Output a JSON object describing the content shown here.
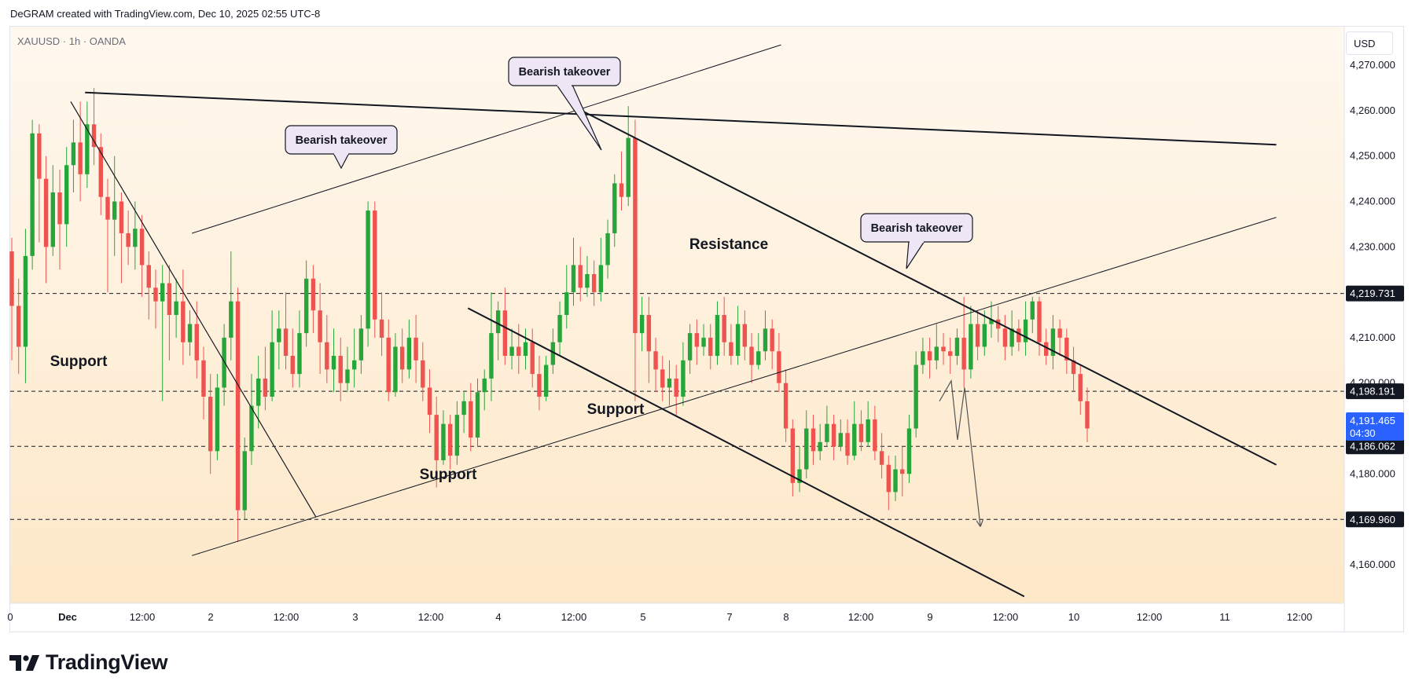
{
  "header": {
    "caption": "DeGRAM created with TradingView.com, Dec 10, 2025 02:55 UTC-8",
    "symbol": "XAUUSD · 1h · OANDA",
    "currency_button": "USD"
  },
  "footer": {
    "logo_text": "TradingView"
  },
  "colors": {
    "up": "#26a63a",
    "down": "#ef5350",
    "line": "#131722",
    "bg_top": "#fff8ef",
    "bg_bottom": "#fde8c8",
    "callout_bg": "#efe6f5",
    "last_price_bg": "#2962ff"
  },
  "chart_data": {
    "type": "candlestick",
    "symbol": "XAUUSD",
    "interval": "1h",
    "ylim": [
      4151.5,
      4278.5
    ],
    "y_ticks": [
      "4,160.000",
      "4,170.000",
      "4,180.000",
      "4,190.000",
      "4,200.000",
      "4,210.000",
      "4,220.000",
      "4,230.000",
      "4,240.000",
      "4,250.000",
      "4,260.000",
      "4,270.000"
    ],
    "x_ticks": [
      "0",
      "Dec",
      "12:00",
      "2",
      "12:00",
      "3",
      "12:00",
      "4",
      "12:00",
      "5",
      "7",
      "8",
      "12:00",
      "9",
      "12:00",
      "10",
      "12:00",
      "11",
      "12:00"
    ],
    "price_labels": [
      {
        "text": "4,219.731",
        "value": 4219.731
      },
      {
        "text": "4,198.191",
        "value": 4198.191
      },
      {
        "text": "4,186.062",
        "value": 4186.062
      },
      {
        "text": "4,169.960",
        "value": 4169.96
      }
    ],
    "last_price": {
      "value_text": "4,191.465",
      "countdown": "04:30",
      "value": 4191.465
    },
    "annotations": [
      {
        "text": "Bearish takeover",
        "type": "callout"
      },
      {
        "text": "Bearish takeover",
        "type": "callout"
      },
      {
        "text": "Bearish takeover",
        "type": "callout"
      },
      {
        "text": "Resistance",
        "type": "label"
      },
      {
        "text": "Support",
        "type": "label"
      },
      {
        "text": "Support",
        "type": "label"
      },
      {
        "text": "Support",
        "type": "label"
      }
    ],
    "candles": [
      [
        4229,
        4217,
        4232,
        4205
      ],
      [
        4217,
        4208,
        4223,
        4202
      ],
      [
        4208,
        4228,
        4234,
        4200
      ],
      [
        4228,
        4255,
        4258,
        4225
      ],
      [
        4255,
        4245,
        4257,
        4231
      ],
      [
        4245,
        4230,
        4250,
        4222
      ],
      [
        4230,
        4242,
        4248,
        4228
      ],
      [
        4242,
        4235,
        4247,
        4225
      ],
      [
        4235,
        4248,
        4252,
        4230
      ],
      [
        4248,
        4253,
        4258,
        4242
      ],
      [
        4253,
        4246,
        4262,
        4240
      ],
      [
        4246,
        4257,
        4262,
        4243
      ],
      [
        4257,
        4252,
        4265,
        4248
      ],
      [
        4252,
        4241,
        4255,
        4237
      ],
      [
        4241,
        4236,
        4245,
        4220
      ],
      [
        4236,
        4240,
        4250,
        4228
      ],
      [
        4240,
        4233,
        4242,
        4222
      ],
      [
        4233,
        4230,
        4238,
        4226
      ],
      [
        4230,
        4234,
        4240,
        4225
      ],
      [
        4234,
        4226,
        4237,
        4219
      ],
      [
        4226,
        4221,
        4229,
        4214
      ],
      [
        4221,
        4218,
        4225,
        4212
      ],
      [
        4218,
        4222,
        4226,
        4196
      ],
      [
        4222,
        4215,
        4226,
        4205
      ],
      [
        4215,
        4218,
        4223,
        4210
      ],
      [
        4218,
        4209,
        4225,
        4204
      ],
      [
        4209,
        4213,
        4216,
        4206
      ],
      [
        4213,
        4205,
        4218,
        4201
      ],
      [
        4205,
        4197,
        4208,
        4192
      ],
      [
        4197,
        4185,
        4202,
        4180
      ],
      [
        4185,
        4199,
        4202,
        4183
      ],
      [
        4199,
        4210,
        4213,
        4195
      ],
      [
        4210,
        4218,
        4229,
        4205
      ],
      [
        4218,
        4172,
        4221,
        4165
      ],
      [
        4172,
        4185,
        4188,
        4170
      ],
      [
        4185,
        4195,
        4202,
        4182
      ],
      [
        4195,
        4201,
        4206,
        4190
      ],
      [
        4201,
        4197,
        4208,
        4194
      ],
      [
        4197,
        4209,
        4216,
        4196
      ],
      [
        4209,
        4212,
        4216,
        4203
      ],
      [
        4212,
        4206,
        4220,
        4203
      ],
      [
        4206,
        4202,
        4212,
        4199
      ],
      [
        4202,
        4211,
        4216,
        4199
      ],
      [
        4211,
        4223,
        4227,
        4208
      ],
      [
        4223,
        4216,
        4226,
        4211
      ],
      [
        4216,
        4209,
        4222,
        4202
      ],
      [
        4209,
        4203,
        4215,
        4200
      ],
      [
        4203,
        4206,
        4212,
        4198
      ],
      [
        4206,
        4200,
        4210,
        4196
      ],
      [
        4200,
        4203,
        4208,
        4198
      ],
      [
        4203,
        4205,
        4212,
        4199
      ],
      [
        4205,
        4212,
        4215,
        4202
      ],
      [
        4212,
        4238,
        4240,
        4208
      ],
      [
        4238,
        4214,
        4240,
        4210
      ],
      [
        4214,
        4210,
        4220,
        4206
      ],
      [
        4210,
        4198,
        4214,
        4196
      ],
      [
        4198,
        4208,
        4211,
        4197
      ],
      [
        4208,
        4203,
        4212,
        4200
      ],
      [
        4203,
        4210,
        4214,
        4201
      ],
      [
        4210,
        4205,
        4215,
        4200
      ],
      [
        4205,
        4199,
        4209,
        4196
      ],
      [
        4199,
        4193,
        4203,
        4189
      ],
      [
        4193,
        4183,
        4197,
        4177
      ],
      [
        4183,
        4191,
        4194,
        4182
      ],
      [
        4191,
        4184,
        4193,
        4181
      ],
      [
        4184,
        4193,
        4196,
        4182
      ],
      [
        4193,
        4196,
        4198,
        4189
      ],
      [
        4196,
        4188,
        4200,
        4185
      ],
      [
        4188,
        4198,
        4201,
        4186
      ],
      [
        4198,
        4201,
        4203,
        4194
      ],
      [
        4201,
        4211,
        4220,
        4196
      ],
      [
        4211,
        4216,
        4218,
        4205
      ],
      [
        4216,
        4206,
        4221,
        4204
      ],
      [
        4206,
        4208,
        4212,
        4203
      ],
      [
        4208,
        4206,
        4213,
        4202
      ],
      [
        4206,
        4209,
        4212,
        4203
      ],
      [
        4209,
        4202,
        4212,
        4199
      ],
      [
        4202,
        4197,
        4206,
        4194
      ],
      [
        4197,
        4204,
        4206,
        4196
      ],
      [
        4204,
        4209,
        4212,
        4202
      ],
      [
        4209,
        4215,
        4218,
        4206
      ],
      [
        4215,
        4220,
        4226,
        4212
      ],
      [
        4220,
        4226,
        4232,
        4217
      ],
      [
        4226,
        4221,
        4230,
        4218
      ],
      [
        4221,
        4224,
        4228,
        4219
      ],
      [
        4224,
        4220,
        4227,
        4217
      ],
      [
        4220,
        4226,
        4232,
        4218
      ],
      [
        4226,
        4233,
        4236,
        4223
      ],
      [
        4233,
        4244,
        4246,
        4230
      ],
      [
        4244,
        4241,
        4251,
        4238
      ],
      [
        4241,
        4254,
        4261,
        4239
      ],
      [
        4254,
        4211,
        4258,
        4196
      ],
      [
        4211,
        4215,
        4219,
        4207
      ],
      [
        4215,
        4207,
        4219,
        4200
      ],
      [
        4207,
        4203,
        4210,
        4198
      ],
      [
        4203,
        4199,
        4206,
        4196
      ],
      [
        4199,
        4201,
        4205,
        4195
      ],
      [
        4201,
        4197,
        4204,
        4193
      ],
      [
        4197,
        4205,
        4209,
        4195
      ],
      [
        4205,
        4211,
        4213,
        4202
      ],
      [
        4211,
        4208,
        4214,
        4204
      ],
      [
        4208,
        4210,
        4213,
        4206
      ],
      [
        4210,
        4206,
        4213,
        4203
      ],
      [
        4206,
        4215,
        4218,
        4204
      ],
      [
        4215,
        4209,
        4219,
        4206
      ],
      [
        4209,
        4206,
        4213,
        4204
      ],
      [
        4206,
        4213,
        4217,
        4204
      ],
      [
        4213,
        4208,
        4216,
        4205
      ],
      [
        4208,
        4204,
        4211,
        4200
      ],
      [
        4204,
        4207,
        4211,
        4203
      ],
      [
        4207,
        4212,
        4216,
        4205
      ],
      [
        4212,
        4207,
        4214,
        4203
      ],
      [
        4207,
        4200,
        4211,
        4198
      ],
      [
        4200,
        4190,
        4203,
        4187
      ],
      [
        4190,
        4178,
        4192,
        4175
      ],
      [
        4178,
        4181,
        4186,
        4176
      ],
      [
        4181,
        4190,
        4194,
        4179
      ],
      [
        4190,
        4185,
        4193,
        4182
      ],
      [
        4185,
        4187,
        4191,
        4183
      ],
      [
        4187,
        4191,
        4195,
        4186
      ],
      [
        4191,
        4186,
        4193,
        4183
      ],
      [
        4186,
        4189,
        4192,
        4185
      ],
      [
        4189,
        4184,
        4192,
        4182
      ],
      [
        4184,
        4191,
        4196,
        4183
      ],
      [
        4191,
        4187,
        4194,
        4185
      ],
      [
        4187,
        4192,
        4196,
        4186
      ],
      [
        4192,
        4185,
        4195,
        4183
      ],
      [
        4185,
        4182,
        4189,
        4179
      ],
      [
        4182,
        4176,
        4184,
        4172
      ],
      [
        4176,
        4181,
        4184,
        4174
      ],
      [
        4181,
        4180,
        4186,
        4175
      ],
      [
        4180,
        4190,
        4193,
        4178
      ],
      [
        4190,
        4204,
        4207,
        4188
      ],
      [
        4204,
        4207,
        4210,
        4202
      ],
      [
        4207,
        4205,
        4210,
        4201
      ],
      [
        4205,
        4208,
        4213,
        4203
      ],
      [
        4208,
        4207,
        4211,
        4204
      ],
      [
        4207,
        4206,
        4210,
        4202
      ],
      [
        4206,
        4210,
        4212,
        4204
      ],
      [
        4210,
        4203,
        4219,
        4199
      ],
      [
        4203,
        4213,
        4217,
        4201
      ],
      [
        4213,
        4208,
        4216,
        4205
      ],
      [
        4208,
        4213,
        4216,
        4206
      ],
      [
        4213,
        4214,
        4218,
        4210
      ],
      [
        4214,
        4212,
        4217,
        4209
      ],
      [
        4212,
        4208,
        4215,
        4205
      ],
      [
        4208,
        4212,
        4216,
        4206
      ],
      [
        4212,
        4209,
        4214,
        4207
      ],
      [
        4209,
        4214,
        4218,
        4206
      ],
      [
        4214,
        4218,
        4219,
        4211
      ],
      [
        4218,
        4209,
        4219,
        4206
      ],
      [
        4209,
        4206,
        4212,
        4204
      ],
      [
        4206,
        4212,
        4215,
        4203
      ],
      [
        4212,
        4210,
        4214,
        4206
      ],
      [
        4210,
        4205,
        4212,
        4202
      ],
      [
        4205,
        4202,
        4208,
        4198
      ],
      [
        4202,
        4196,
        4204,
        4193
      ],
      [
        4196,
        4190,
        4199,
        4187
      ]
    ]
  }
}
